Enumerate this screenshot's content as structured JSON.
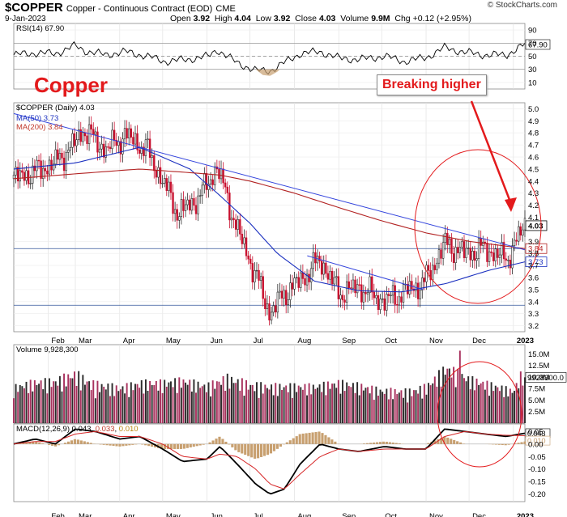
{
  "header": {
    "symbol": "$COPPER",
    "description": "Copper - Continuous Contract (EOD)",
    "exchange": "CME",
    "date": "9-Jan-2023",
    "open_label": "Open",
    "open": "3.92",
    "high_label": "High",
    "high": "4.04",
    "low_label": "Low",
    "low": "3.92",
    "close_label": "Close",
    "close": "4.03",
    "volume_label": "Volume",
    "volume": "9.9M",
    "chg_label": "Chg",
    "chg": "+0.12 (+2.95%)",
    "credit": "© StockCharts.com"
  },
  "annotations": {
    "copper": "Copper",
    "breaking": "Breaking higher"
  },
  "colors": {
    "price_up": "#2a2a2a",
    "price_down": "#c8102e",
    "ma50": "#1a2fbf",
    "ma200": "#b22222",
    "trendline": "#3344dd",
    "annotation_red": "#e31a1c",
    "volume_up": "#2b2b2b",
    "volume_down": "#a8325e",
    "macd_line": "#000000",
    "macd_signal": "#d62728",
    "macd_hist": "#c8a070",
    "rsi": "#000000"
  },
  "chart_data": [
    {
      "type": "line",
      "name": "rsi",
      "label": "RSI(14) 67.90",
      "ylim": [
        0,
        100
      ],
      "ticks": [
        90,
        70,
        50,
        30,
        10
      ],
      "tag_value": "67.90",
      "x": [
        "Jan 17",
        "Feb 1",
        "Feb 15",
        "Mar 1",
        "Mar 8",
        "Mar 22",
        "Apr 5",
        "Apr 20",
        "May 3",
        "May 18",
        "Jun 2",
        "Jun 8",
        "Jun 22",
        "Jul 5",
        "Jul 15",
        "Jul 25",
        "Aug 5",
        "Aug 19",
        "Sep 1",
        "Sep 15",
        "Oct 3",
        "Oct 17",
        "Nov 1",
        "Nov 14",
        "Nov 28",
        "Dec 12",
        "Dec 27",
        "Jan 9"
      ],
      "values": [
        52,
        55,
        54,
        66,
        58,
        52,
        57,
        50,
        42,
        45,
        50,
        60,
        40,
        28,
        28,
        40,
        54,
        57,
        47,
        45,
        50,
        42,
        48,
        63,
        56,
        52,
        52,
        68
      ]
    },
    {
      "type": "line",
      "name": "price",
      "label": "$COPPER (Daily) 4.03",
      "ylim": [
        3.15,
        5.05
      ],
      "ticks": [
        5.0,
        4.9,
        4.8,
        4.7,
        4.6,
        4.5,
        4.4,
        4.3,
        4.2,
        4.1,
        3.9,
        3.8,
        3.7,
        3.6,
        3.5,
        3.4,
        3.3,
        3.2
      ],
      "x_axis_labels": [
        "Feb",
        "Mar",
        "Apr",
        "May",
        "Jun",
        "Jul",
        "Aug",
        "Sep",
        "Oct",
        "Nov",
        "Dec",
        "2023"
      ],
      "x": [
        "Jan 17",
        "Feb 1",
        "Feb 15",
        "Mar 1",
        "Mar 7",
        "Mar 22",
        "Apr 5",
        "Apr 20",
        "May 3",
        "May 12",
        "May 25",
        "Jun 2",
        "Jun 8",
        "Jun 22",
        "Jul 5",
        "Jul 15",
        "Jul 25",
        "Aug 5",
        "Aug 19",
        "Sep 1",
        "Sep 15",
        "Oct 3",
        "Oct 17",
        "Oct 31",
        "Nov 14",
        "Nov 28",
        "Dec 12",
        "Dec 27",
        "Jan 9"
      ],
      "values": [
        4.42,
        4.48,
        4.55,
        4.72,
        4.83,
        4.66,
        4.78,
        4.66,
        4.35,
        4.13,
        4.25,
        4.39,
        4.52,
        4.0,
        3.62,
        3.3,
        3.47,
        3.57,
        3.75,
        3.47,
        3.52,
        3.4,
        3.48,
        3.56,
        3.88,
        3.8,
        3.84,
        3.75,
        4.03
      ],
      "series": [
        {
          "name": "MA(50) 3.73",
          "tag": "3.73",
          "x": [
            "Jan 17",
            "Mar 1",
            "Apr 15",
            "May 20",
            "Jun 10",
            "Jul 1",
            "Jul 20",
            "Aug 15",
            "Sep 15",
            "Oct 15",
            "Nov 15",
            "Dec 15",
            "Jan 9"
          ],
          "values": [
            4.5,
            4.55,
            4.68,
            4.5,
            4.28,
            4.05,
            3.8,
            3.57,
            3.49,
            3.48,
            3.55,
            3.66,
            3.73
          ]
        },
        {
          "name": "MA(200) 3.84",
          "tag": "3.84",
          "x": [
            "Jan 17",
            "Mar 1",
            "Apr 15",
            "May 20",
            "Jun 10",
            "Jul 1",
            "Aug 1",
            "Sep 1",
            "Oct 1",
            "Nov 1",
            "Dec 1",
            "Jan 9"
          ],
          "values": [
            4.42,
            4.46,
            4.5,
            4.47,
            4.45,
            4.4,
            4.3,
            4.18,
            4.07,
            3.97,
            3.9,
            3.84
          ]
        }
      ],
      "trendlines": [
        {
          "x": [
            "Jan 17",
            "Jan 9"
          ],
          "values": [
            4.96,
            3.83
          ]
        },
        {
          "x": [
            "Aug 10",
            "Oct 30"
          ],
          "values": [
            3.78,
            3.5
          ]
        }
      ],
      "horizontal_lines": [
        3.84,
        3.37
      ],
      "close_tag": "4.03"
    },
    {
      "type": "bar",
      "name": "volume",
      "label": "Volume 9,928,300",
      "ylim": [
        0,
        17000000
      ],
      "ticks": [
        "15.0M",
        "12.5M",
        "10.0M",
        "7.5M",
        "5.0M",
        "2.5M"
      ],
      "tag": "9928300.0",
      "x": [
        "Jan 17",
        "Feb 1",
        "Feb 15",
        "Mar 1",
        "Mar 15",
        "Apr 1",
        "Apr 15",
        "May 1",
        "May 15",
        "Jun 1",
        "Jun 15",
        "Jul 1",
        "Jul 15",
        "Aug 1",
        "Aug 15",
        "Sep 1",
        "Sep 15",
        "Oct 1",
        "Oct 15",
        "Nov 1",
        "Nov 15",
        "Dec 1",
        "Dec 15",
        "Jan 1",
        "Jan 9"
      ],
      "values": [
        6000000,
        7000000,
        7500000,
        9500000,
        8000000,
        6500000,
        7000000,
        6800000,
        7200000,
        6500000,
        8500000,
        8000000,
        7000000,
        6500000,
        6200000,
        6800000,
        6500000,
        6000000,
        6400000,
        7000000,
        10000000,
        7500000,
        6500000,
        5500000,
        9928300
      ]
    },
    {
      "type": "line",
      "name": "macd",
      "label": "MACD(12,26,9) 0.043, 0.033, 0.010",
      "ylim": [
        -0.23,
        0.08
      ],
      "ticks": [
        0.05,
        0.0,
        -0.05,
        -0.1,
        -0.15,
        -0.2
      ],
      "tags": [
        "0.043",
        "0.033",
        "0.010"
      ],
      "x": [
        "Jan 17",
        "Feb 1",
        "Feb 15",
        "Mar 1",
        "Mar 15",
        "Apr 1",
        "Apr 15",
        "May 1",
        "May 15",
        "Jun 1",
        "Jun 10",
        "Jun 22",
        "Jul 5",
        "Jul 15",
        "Jul 25",
        "Aug 5",
        "Aug 19",
        "Sep 1",
        "Sep 15",
        "Oct 3",
        "Oct 17",
        "Nov 1",
        "Nov 14",
        "Nov 28",
        "Dec 12",
        "Dec 27",
        "Jan 9"
      ],
      "series": [
        {
          "name": "MACD",
          "values": [
            0.0,
            0.02,
            0.0,
            0.06,
            0.05,
            0.02,
            0.03,
            -0.02,
            -0.07,
            -0.06,
            -0.01,
            -0.08,
            -0.16,
            -0.2,
            -0.18,
            -0.08,
            0.0,
            -0.02,
            -0.03,
            -0.01,
            -0.02,
            -0.02,
            0.06,
            0.05,
            0.04,
            0.03,
            0.043
          ]
        },
        {
          "name": "Signal",
          "values": [
            0.0,
            0.01,
            0.01,
            0.04,
            0.05,
            0.03,
            0.03,
            0.0,
            -0.05,
            -0.06,
            -0.04,
            -0.05,
            -0.1,
            -0.16,
            -0.18,
            -0.12,
            -0.05,
            -0.02,
            -0.03,
            -0.02,
            -0.02,
            -0.02,
            0.03,
            0.05,
            0.04,
            0.035,
            0.033
          ]
        }
      ],
      "histogram": [
        0.0,
        0.01,
        -0.01,
        0.02,
        0.0,
        -0.01,
        0.0,
        -0.02,
        -0.02,
        0.0,
        0.03,
        -0.03,
        -0.06,
        -0.04,
        0.0,
        0.04,
        0.05,
        0.0,
        0.0,
        0.01,
        0.0,
        0.0,
        0.03,
        0.0,
        0.0,
        -0.005,
        0.01
      ]
    }
  ]
}
